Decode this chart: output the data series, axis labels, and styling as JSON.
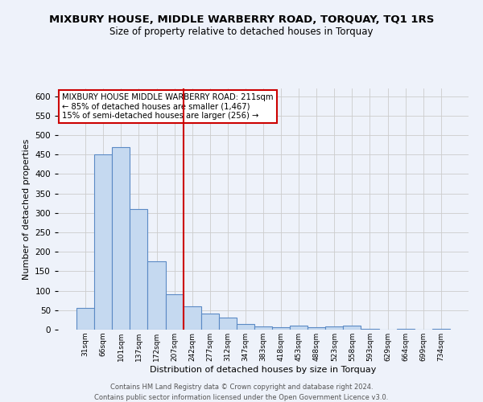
{
  "title": "MIXBURY HOUSE, MIDDLE WARBERRY ROAD, TORQUAY, TQ1 1RS",
  "subtitle": "Size of property relative to detached houses in Torquay",
  "xlabel": "Distribution of detached houses by size in Torquay",
  "ylabel": "Number of detached properties",
  "categories": [
    "31sqm",
    "66sqm",
    "101sqm",
    "137sqm",
    "172sqm",
    "207sqm",
    "242sqm",
    "277sqm",
    "312sqm",
    "347sqm",
    "383sqm",
    "418sqm",
    "453sqm",
    "488sqm",
    "523sqm",
    "558sqm",
    "593sqm",
    "629sqm",
    "664sqm",
    "699sqm",
    "734sqm"
  ],
  "values": [
    55,
    450,
    470,
    310,
    175,
    90,
    60,
    42,
    32,
    15,
    8,
    7,
    10,
    7,
    8,
    10,
    2,
    0,
    3,
    0,
    2
  ],
  "bar_color": "#c5d9f0",
  "bar_edge_color": "#5b8ac5",
  "vline_x": 5.5,
  "vline_color": "#cc0000",
  "ylim": [
    0,
    620
  ],
  "yticks": [
    0,
    50,
    100,
    150,
    200,
    250,
    300,
    350,
    400,
    450,
    500,
    550,
    600
  ],
  "annotation_text": "MIXBURY HOUSE MIDDLE WARBERRY ROAD: 211sqm\n← 85% of detached houses are smaller (1,467)\n15% of semi-detached houses are larger (256) →",
  "footer1": "Contains HM Land Registry data © Crown copyright and database right 2024.",
  "footer2": "Contains public sector information licensed under the Open Government Licence v3.0.",
  "bg_color": "#eef2fa",
  "plot_bg_color": "#eef2fa",
  "grid_color": "#cccccc"
}
